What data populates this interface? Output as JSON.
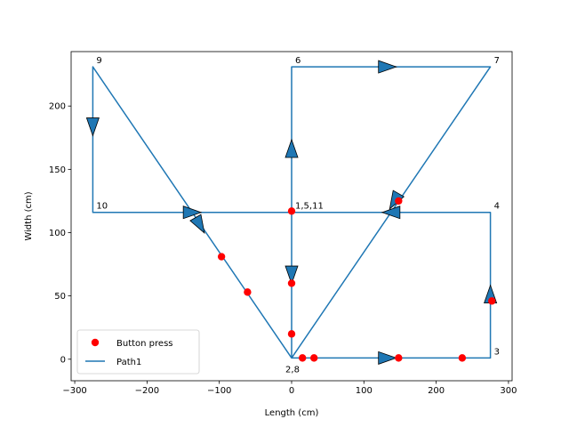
{
  "chart_data": {
    "type": "line",
    "xlabel": "Length (cm)",
    "ylabel": "Width (cm)",
    "xlim": [
      -305,
      305
    ],
    "ylim": [
      -17,
      243
    ],
    "xticks": [
      -300,
      -200,
      -100,
      0,
      100,
      200,
      300
    ],
    "yticks": [
      0,
      50,
      100,
      150,
      200
    ],
    "legend_position": "lower-left",
    "colors": {
      "path": "#1f77b4",
      "button": "#ff0000"
    },
    "series": [
      {
        "name": "Path1",
        "type": "line",
        "points": [
          [
            0,
            116
          ],
          [
            0,
            1
          ],
          [
            275,
            1
          ],
          [
            275,
            116
          ],
          [
            0,
            116
          ],
          [
            0,
            231
          ],
          [
            275,
            231
          ],
          [
            0,
            1
          ],
          [
            -275,
            231
          ],
          [
            -275,
            116
          ],
          [
            0,
            116
          ]
        ]
      },
      {
        "name": "Button press",
        "type": "scatter",
        "points": [
          [
            0,
            117
          ],
          [
            0,
            60
          ],
          [
            0,
            20
          ],
          [
            -97,
            81
          ],
          [
            -61,
            53
          ],
          [
            15,
            1
          ],
          [
            31,
            1
          ],
          [
            148,
            1
          ],
          [
            236,
            1
          ],
          [
            277,
            46
          ],
          [
            148,
            125
          ]
        ]
      }
    ],
    "arrows": [
      {
        "x": 0,
        "y": 68,
        "dir": "down"
      },
      {
        "x": 130,
        "y": 1,
        "dir": "right"
      },
      {
        "x": 275,
        "y": 50,
        "dir": "up"
      },
      {
        "x": 140,
        "y": 116,
        "dir": "left"
      },
      {
        "x": 0,
        "y": 165,
        "dir": "up"
      },
      {
        "x": 130,
        "y": 231,
        "dir": "right"
      },
      {
        "x": 143,
        "y": 126,
        "dir": "down-left"
      },
      {
        "x": -275,
        "y": 185,
        "dir": "down"
      },
      {
        "x": -140,
        "y": 116,
        "dir": "right"
      },
      {
        "x": -128,
        "y": 107,
        "dir": "down-right"
      }
    ],
    "annotations": [
      {
        "text": "9",
        "x": -275,
        "y": 231,
        "anchor": "above-right"
      },
      {
        "text": "6",
        "x": 0,
        "y": 231,
        "anchor": "above-right"
      },
      {
        "text": "7",
        "x": 275,
        "y": 231,
        "anchor": "above-right"
      },
      {
        "text": "10",
        "x": -275,
        "y": 116,
        "anchor": "above-right"
      },
      {
        "text": "1,5,11",
        "x": 0,
        "y": 116,
        "anchor": "above-right"
      },
      {
        "text": "4",
        "x": 275,
        "y": 116,
        "anchor": "above-right"
      },
      {
        "text": "3",
        "x": 275,
        "y": 1,
        "anchor": "above-right"
      },
      {
        "text": "2,8",
        "x": 0,
        "y": 1,
        "anchor": "below"
      }
    ]
  }
}
